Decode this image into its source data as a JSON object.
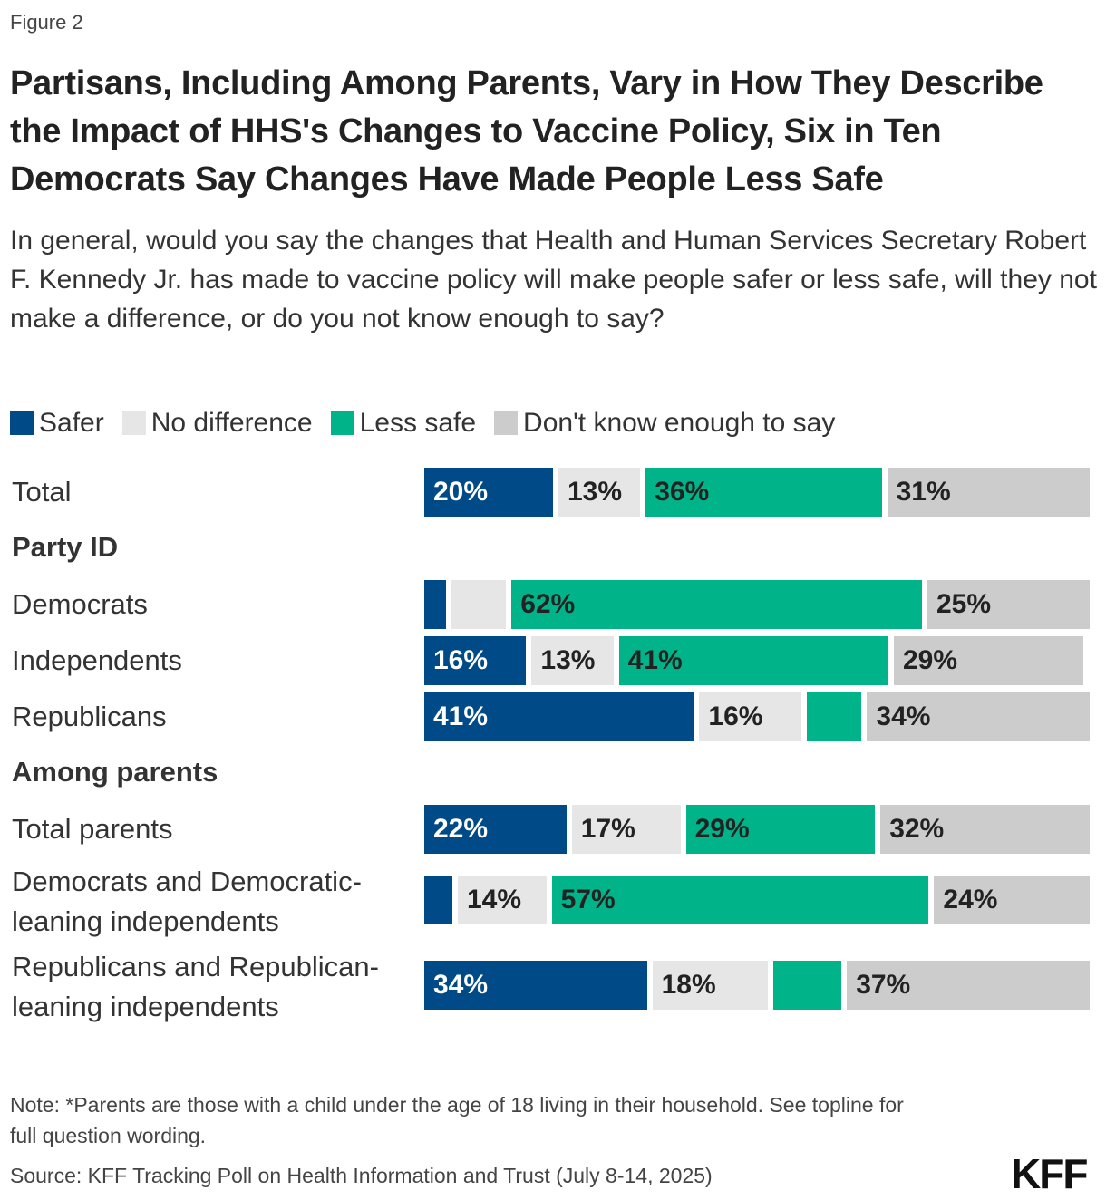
{
  "figure_label": "Figure 2",
  "logo": "KFF",
  "chart_data": {
    "type": "bar",
    "orientation": "horizontal",
    "stacked": true,
    "normalized_percent": true,
    "title": "Partisans, Including Among Parents, Vary in How They Describe the  Impact of HHS's Changes to Vaccine Policy, Six in Ten Democrats Say Changes Have Made People Less Safe",
    "subtitle": "In general, would you say the changes that Health and Human Services Secretary Robert F. Kennedy Jr. has made to vaccine policy will make people safer or less safe, will they not make a difference, or do you not know enough to say?",
    "legend_position": "top-left",
    "xlim": [
      0,
      100
    ],
    "series": [
      {
        "name": "Safer",
        "color": "#004B87",
        "label_color": "#ffffff"
      },
      {
        "name": "No difference",
        "color": "#E6E6E6",
        "label_color": "#222222"
      },
      {
        "name": "Less safe",
        "color": "#00B389",
        "label_color": "#222222"
      },
      {
        "name": "Don't know enough to say",
        "color": "#CCCCCC",
        "label_color": "#222222"
      }
    ],
    "rows": [
      {
        "type": "bar",
        "label": "Total",
        "values": [
          20,
          13,
          36,
          31
        ],
        "labels": [
          "20%",
          "13%",
          "36%",
          "31%"
        ]
      },
      {
        "type": "header",
        "label": "Party ID"
      },
      {
        "type": "bar",
        "label": "Democrats",
        "values": [
          4,
          9,
          62,
          25
        ],
        "labels": [
          "",
          "",
          "62%",
          "25%"
        ]
      },
      {
        "type": "bar",
        "label": "Independents",
        "values": [
          16,
          13,
          41,
          29
        ],
        "labels": [
          "16%",
          "13%",
          "41%",
          "29%"
        ]
      },
      {
        "type": "bar",
        "label": "Republicans",
        "values": [
          41,
          16,
          9,
          34
        ],
        "labels": [
          "41%",
          "16%",
          "",
          "34%"
        ]
      },
      {
        "type": "header",
        "label": "Among parents"
      },
      {
        "type": "bar",
        "label": "Total parents",
        "values": [
          22,
          17,
          29,
          32
        ],
        "labels": [
          "22%",
          "17%",
          "29%",
          "32%"
        ]
      },
      {
        "type": "bar",
        "label": "Democrats and Democratic-leaning independents",
        "values": [
          5,
          14,
          57,
          24
        ],
        "labels": [
          "",
          "14%",
          "57%",
          "24%"
        ]
      },
      {
        "type": "bar",
        "label": "Republicans and Republican-leaning independents",
        "values": [
          34,
          18,
          11,
          37
        ],
        "labels": [
          "34%",
          "18%",
          "",
          "37%"
        ]
      }
    ]
  },
  "note": "Note: *Parents are those with a child under the age of 18 living in their household. See topline for full question wording.",
  "source": "Source: KFF Tracking Poll on Health Information and Trust (July 8-14, 2025)"
}
